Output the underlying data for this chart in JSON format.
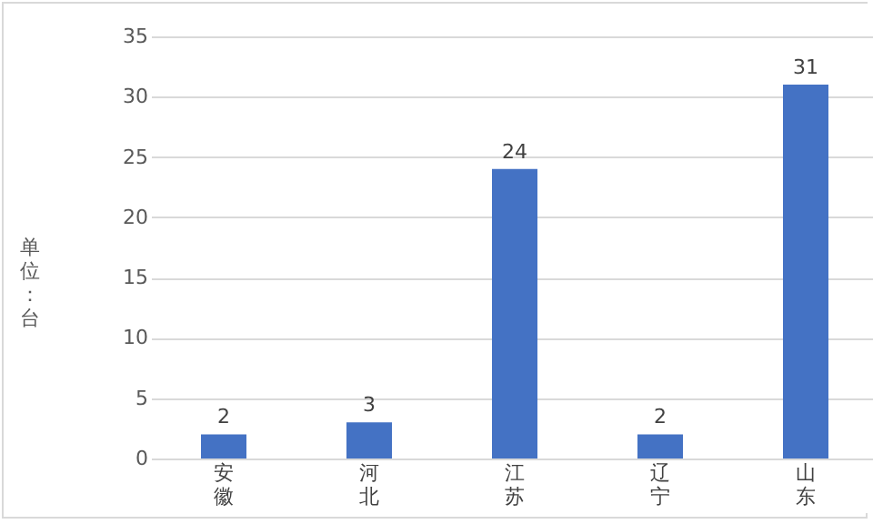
{
  "chart_data": {
    "type": "bar",
    "ylabel": "单位：台",
    "categories": [
      "安徽",
      "河北",
      "江苏",
      "辽宁",
      "山东"
    ],
    "values": [
      2,
      3,
      24,
      2,
      31
    ],
    "color": "#4472c4",
    "ylim": [
      0,
      35
    ],
    "yticks": [
      0,
      5,
      10,
      15,
      20,
      25,
      30,
      35
    ],
    "grid": "y",
    "data_labels": true
  }
}
